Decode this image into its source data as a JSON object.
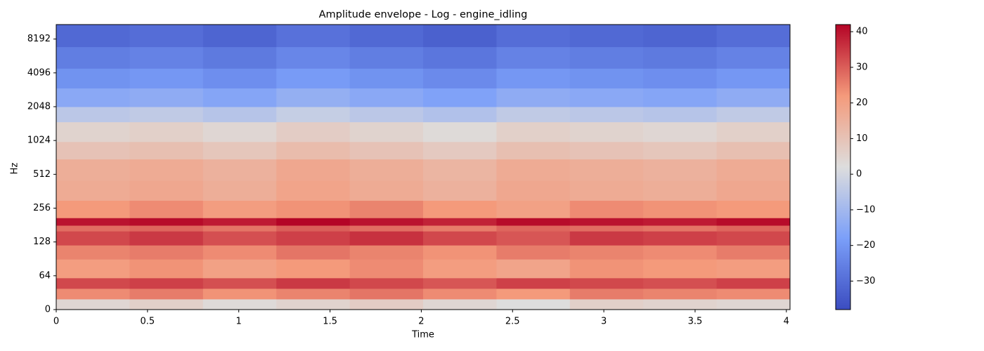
{
  "chart_data": {
    "type": "heatmap",
    "title": "Amplitude envelope - Log - engine_idling",
    "xlabel": "Time",
    "ylabel": "Hz",
    "colormap": "coolwarm",
    "x_bins": [
      0,
      0.402,
      0.804,
      1.206,
      1.608,
      2.01,
      2.412,
      2.814,
      3.216,
      3.618,
      4.02
    ],
    "y_bins": [
      0,
      20,
      40,
      60,
      90,
      120,
      160,
      180,
      210,
      300,
      450,
      700,
      1000,
      1500,
      2048,
      3000,
      4500,
      7000,
      11025
    ],
    "values": [
      [
        4,
        6,
        3,
        5,
        7,
        4,
        2,
        6,
        5,
        4
      ],
      [
        24,
        26,
        23,
        25,
        27,
        24,
        22,
        26,
        25,
        24
      ],
      [
        33,
        34,
        32,
        35,
        33,
        31,
        34,
        33,
        32,
        34
      ],
      [
        21,
        23,
        20,
        22,
        24,
        21,
        19,
        23,
        22,
        21
      ],
      [
        25,
        26,
        24,
        27,
        25,
        23,
        26,
        25,
        24,
        26
      ],
      [
        33,
        35,
        32,
        34,
        36,
        33,
        31,
        35,
        34,
        33
      ],
      [
        28,
        29,
        27,
        30,
        28,
        26,
        29,
        28,
        27,
        29
      ],
      [
        40,
        41,
        39,
        42,
        40,
        38,
        41,
        40,
        39,
        41
      ],
      [
        22,
        24,
        21,
        23,
        25,
        22,
        20,
        24,
        23,
        22
      ],
      [
        17,
        18,
        16,
        19,
        17,
        15,
        18,
        17,
        16,
        18
      ],
      [
        16,
        17,
        15,
        18,
        16,
        14,
        17,
        16,
        15,
        17
      ],
      [
        10,
        11,
        9,
        12,
        10,
        8,
        11,
        10,
        9,
        11
      ],
      [
        5,
        6,
        4,
        7,
        5,
        3,
        6,
        5,
        4,
        6
      ],
      [
        -5,
        -4,
        -6,
        -3,
        -5,
        -7,
        -4,
        -5,
        -6,
        -4
      ],
      [
        -15,
        -14,
        -16,
        -13,
        -15,
        -17,
        -14,
        -15,
        -16,
        -14
      ],
      [
        -21,
        -20,
        -22,
        -19,
        -21,
        -23,
        -20,
        -21,
        -22,
        -20
      ],
      [
        -26,
        -25,
        -27,
        -24,
        -26,
        -28,
        -25,
        -26,
        -27,
        -25
      ],
      [
        -31,
        -30,
        -32,
        -29,
        -31,
        -33,
        -30,
        -31,
        -32,
        -30
      ]
    ],
    "xlim": [
      0,
      4.02
    ],
    "xticks": [
      0,
      0.5,
      1,
      1.5,
      2,
      2.5,
      3,
      3.5,
      4
    ],
    "yscale": "symlog",
    "ylinthresh": 64,
    "ylim": [
      0,
      11025
    ],
    "yticks": [
      0,
      64,
      128,
      256,
      512,
      1024,
      2048,
      4096,
      8192
    ],
    "clim": [
      -38,
      42
    ],
    "cticks": [
      {
        "value": -30,
        "label": "−30"
      },
      {
        "value": -20,
        "label": "−20"
      },
      {
        "value": -10,
        "label": "−10"
      },
      0,
      10,
      20,
      30,
      40
    ]
  }
}
